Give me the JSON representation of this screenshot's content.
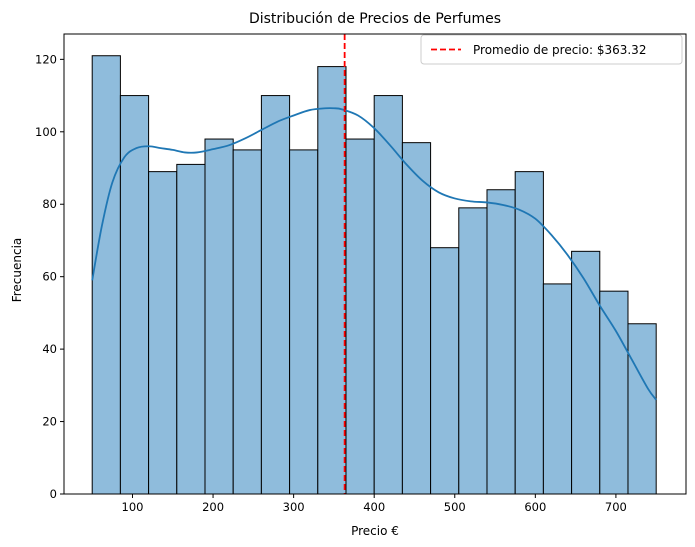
{
  "chart_data": {
    "type": "bar",
    "title": "Distribución de Precios de Perfumes",
    "xlabel": "Precio €",
    "ylabel": "Frecuencia",
    "xlim": [
      15,
      787
    ],
    "ylim": [
      0,
      127
    ],
    "x_ticks": [
      100,
      200,
      300,
      400,
      500,
      600,
      700
    ],
    "y_ticks": [
      0,
      20,
      40,
      60,
      80,
      100,
      120
    ],
    "bin_edges": [
      50,
      85,
      120,
      155,
      190,
      225,
      260,
      295,
      330,
      365,
      400,
      435,
      470,
      505,
      540,
      575,
      610,
      645,
      680,
      715,
      750
    ],
    "values": [
      121,
      110,
      89,
      91,
      98,
      95,
      110,
      95,
      118,
      98,
      110,
      97,
      68,
      79,
      84,
      89,
      58,
      67,
      56,
      47
    ],
    "bar_color": "#8fbcdc",
    "bar_edge_color": "#000000",
    "kde": {
      "color": "#1f77b4",
      "x": [
        50,
        62,
        75,
        90,
        105,
        120,
        135,
        150,
        165,
        180,
        200,
        220,
        240,
        260,
        280,
        300,
        320,
        340,
        350,
        360,
        380,
        400,
        420,
        440,
        460,
        480,
        500,
        520,
        540,
        560,
        580,
        600,
        620,
        640,
        660,
        680,
        700,
        720,
        740,
        750
      ],
      "y": [
        59,
        74,
        86,
        93,
        95.5,
        96,
        95.5,
        95,
        94.3,
        94.3,
        95.2,
        96.3,
        98.2,
        100.5,
        102.8,
        104.5,
        106,
        106.5,
        106.5,
        106.2,
        104.5,
        101,
        96.2,
        91,
        86.5,
        83.3,
        81.6,
        80.8,
        80.5,
        79.8,
        78.5,
        76,
        71.5,
        66,
        59.5,
        52,
        45,
        37,
        29,
        26
      ]
    },
    "mean_line": {
      "value": 363.32,
      "color": "#ff0000",
      "style": "dashed",
      "label": "Promedio de precio: $363.32"
    },
    "legend_position": "top-right",
    "grid": false
  }
}
